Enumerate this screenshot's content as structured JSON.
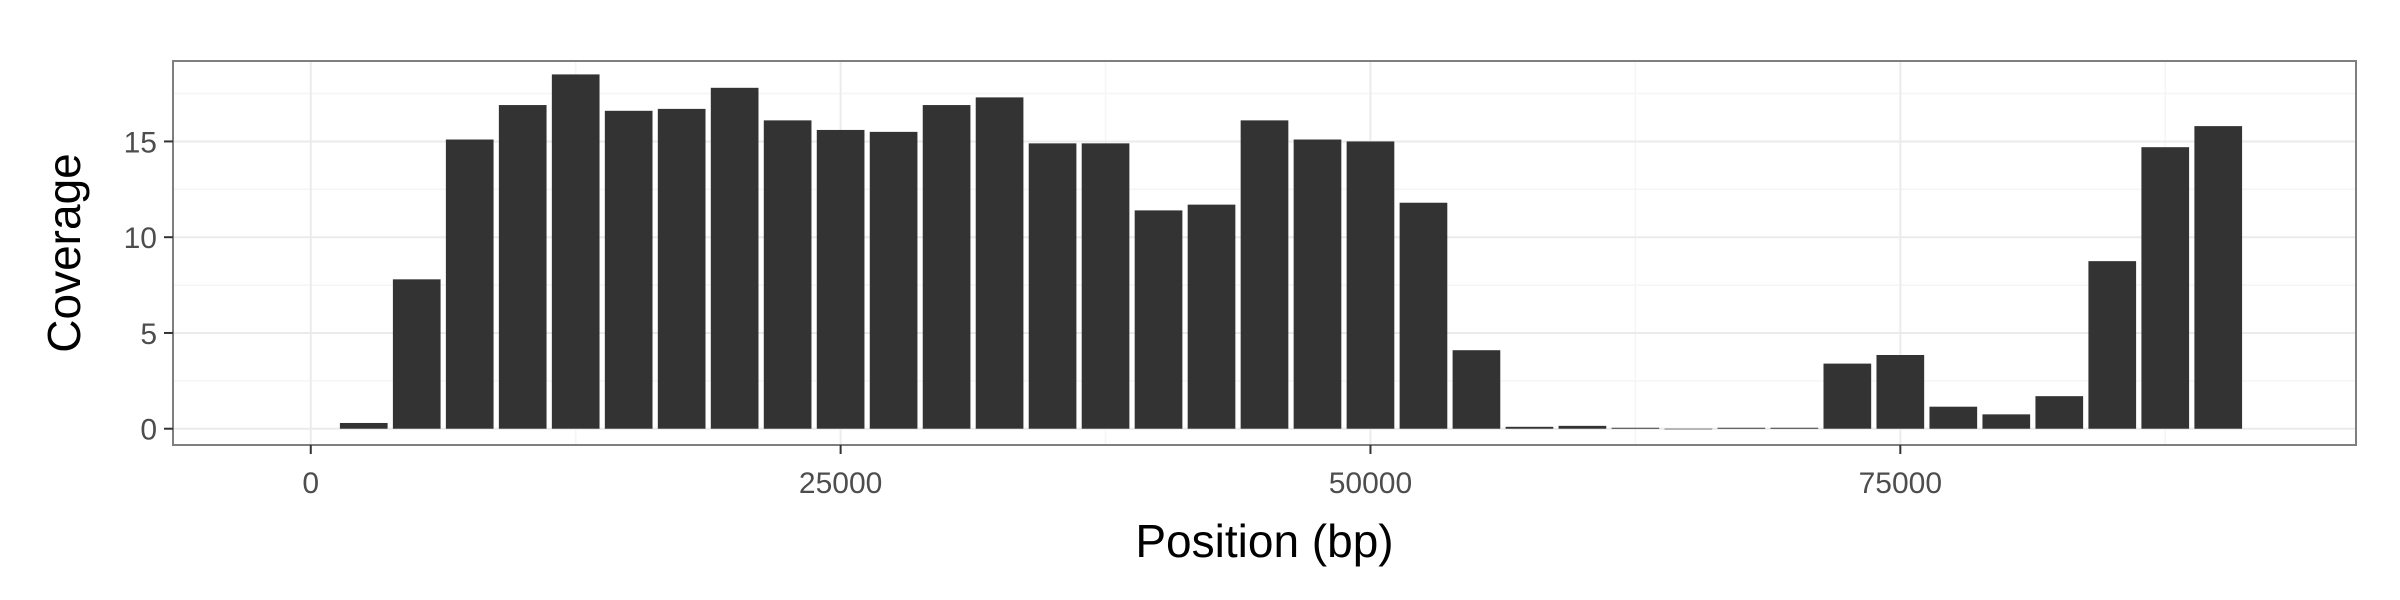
{
  "chart_data": {
    "type": "bar",
    "xlabel": "Position (bp)",
    "ylabel": "Coverage",
    "xlim": [
      -6500,
      96500
    ],
    "ylim": [
      -0.85,
      19.2
    ],
    "x_ticks": [
      0,
      25000,
      50000,
      75000
    ],
    "x_tick_labels": [
      "0",
      "25000",
      "50000",
      "75000"
    ],
    "y_ticks": [
      0,
      5,
      10,
      15
    ],
    "y_tick_labels": [
      "0",
      "5",
      "10",
      "15"
    ],
    "bin_width": 2500,
    "x": [
      2500,
      5000,
      7500,
      10000,
      12500,
      15000,
      17500,
      20000,
      22500,
      25000,
      27500,
      30000,
      32500,
      35000,
      37500,
      40000,
      42500,
      45000,
      47500,
      50000,
      52500,
      55000,
      57500,
      60000,
      62500,
      65000,
      67500,
      70000,
      72500,
      75000,
      77500,
      80000,
      82500,
      85000,
      87500,
      90000
    ],
    "values": [
      0.3,
      7.8,
      15.1,
      16.9,
      18.5,
      16.6,
      16.7,
      17.8,
      16.1,
      15.6,
      15.5,
      16.9,
      17.3,
      14.9,
      14.9,
      11.4,
      11.7,
      16.1,
      15.1,
      15.0,
      11.8,
      4.1,
      0.1,
      0.15,
      0.05,
      0.0,
      0.05,
      0.05,
      3.4,
      3.85,
      1.15,
      0.75,
      1.7,
      8.75,
      14.7,
      15.8
    ],
    "grid": true,
    "colors": {
      "bar": "#333333",
      "panel_background": "#ffffff",
      "grid_major": "#ebebeb",
      "grid_minor": "#f5f5f5",
      "panel_border": "#7f7f7f"
    }
  }
}
